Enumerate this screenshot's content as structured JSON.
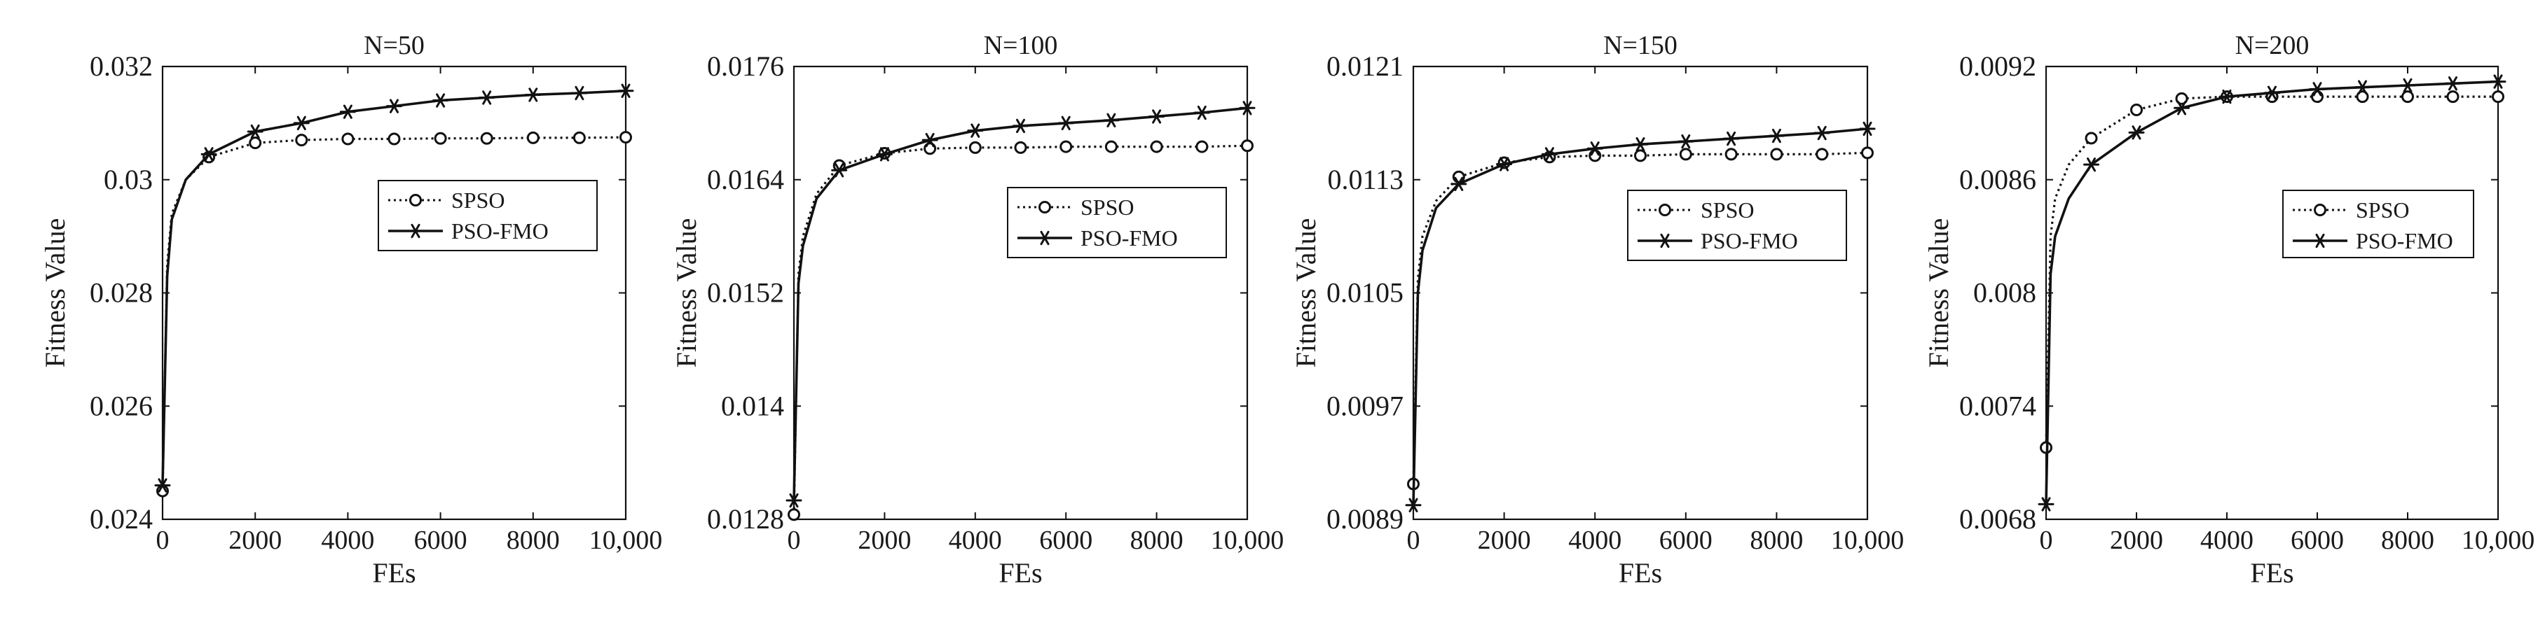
{
  "chart_data": [
    {
      "type": "line",
      "title": "N=50",
      "xlabel": "FEs",
      "ylabel": "Fitness Value",
      "xlim": [
        0,
        10000
      ],
      "ylim": [
        0.024,
        0.032
      ],
      "xticks": [
        0,
        2000,
        4000,
        6000,
        8000,
        10000
      ],
      "xtick_labels": [
        "0",
        "2000",
        "4000",
        "6000",
        "8000",
        "10,000"
      ],
      "yticks": [
        0.024,
        0.026,
        0.028,
        0.03,
        0.032
      ],
      "ytick_labels": [
        "0.024",
        "0.026",
        "0.028",
        "0.03",
        "0.032"
      ],
      "legend_position": "center-right",
      "series": [
        {
          "name": "SPSO",
          "style": "dotted",
          "marker": "circle",
          "x": [
            0,
            100,
            200,
            500,
            1000,
            2000,
            3000,
            4000,
            5000,
            6000,
            7000,
            8000,
            9000,
            10000
          ],
          "y": [
            0.0245,
            0.0285,
            0.0294,
            0.03,
            0.0304,
            0.03065,
            0.0307,
            0.03072,
            0.03072,
            0.03073,
            0.03073,
            0.03074,
            0.03074,
            0.03075
          ],
          "marker_x": [
            0,
            1000,
            2000,
            3000,
            4000,
            5000,
            6000,
            7000,
            8000,
            9000,
            10000
          ]
        },
        {
          "name": "PSO-FMO",
          "style": "solid",
          "marker": "asterisk",
          "x": [
            0,
            100,
            200,
            500,
            1000,
            2000,
            3000,
            4000,
            5000,
            6000,
            7000,
            8000,
            9000,
            10000
          ],
          "y": [
            0.0246,
            0.0283,
            0.0293,
            0.03,
            0.03045,
            0.03085,
            0.031,
            0.0312,
            0.0313,
            0.0314,
            0.03145,
            0.0315,
            0.03153,
            0.03157
          ],
          "marker_x": [
            0,
            1000,
            2000,
            3000,
            4000,
            5000,
            6000,
            7000,
            8000,
            9000,
            10000
          ]
        }
      ]
    },
    {
      "type": "line",
      "title": "N=100",
      "xlabel": "FEs",
      "ylabel": "Fitness Value",
      "xlim": [
        0,
        10000
      ],
      "ylim": [
        0.0128,
        0.0176
      ],
      "xticks": [
        0,
        2000,
        4000,
        6000,
        8000,
        10000
      ],
      "xtick_labels": [
        "0",
        "2000",
        "4000",
        "6000",
        "8000",
        "10,000"
      ],
      "yticks": [
        0.0128,
        0.014,
        0.0152,
        0.0164,
        0.0176
      ],
      "ytick_labels": [
        "0.0128",
        "0.014",
        "0.0152",
        "0.0164",
        "0.0176"
      ],
      "legend_position": "center-right",
      "series": [
        {
          "name": "SPSO",
          "style": "dotted",
          "marker": "circle",
          "x": [
            0,
            100,
            200,
            500,
            1000,
            2000,
            3000,
            4000,
            5000,
            6000,
            7000,
            8000,
            9000,
            10000
          ],
          "y": [
            0.01285,
            0.0154,
            0.0158,
            0.01625,
            0.01655,
            0.01668,
            0.01673,
            0.01674,
            0.01674,
            0.01675,
            0.01675,
            0.01675,
            0.01675,
            0.01676
          ],
          "marker_x": [
            0,
            1000,
            2000,
            3000,
            4000,
            5000,
            6000,
            7000,
            8000,
            9000,
            10000
          ]
        },
        {
          "name": "PSO-FMO",
          "style": "solid",
          "marker": "asterisk",
          "x": [
            0,
            100,
            200,
            500,
            1000,
            2000,
            3000,
            4000,
            5000,
            6000,
            7000,
            8000,
            9000,
            10000
          ],
          "y": [
            0.013,
            0.0153,
            0.0157,
            0.0162,
            0.0165,
            0.01667,
            0.01682,
            0.01692,
            0.01697,
            0.017,
            0.01703,
            0.01707,
            0.01711,
            0.01716
          ],
          "marker_x": [
            0,
            1000,
            2000,
            3000,
            4000,
            5000,
            6000,
            7000,
            8000,
            9000,
            10000
          ]
        }
      ]
    },
    {
      "type": "line",
      "title": "N=150",
      "xlabel": "FEs",
      "ylabel": "Fitness Value",
      "xlim": [
        0,
        10000
      ],
      "ylim": [
        0.0089,
        0.0121
      ],
      "xticks": [
        0,
        2000,
        4000,
        6000,
        8000,
        10000
      ],
      "xtick_labels": [
        "0",
        "2000",
        "4000",
        "6000",
        "8000",
        "10,000"
      ],
      "yticks": [
        0.0089,
        0.0097,
        0.0105,
        0.0113,
        0.0121
      ],
      "ytick_labels": [
        "0.0089",
        "0.0097",
        "0.0105",
        "0.0113",
        "0.0121"
      ],
      "legend_position": "center-right",
      "series": [
        {
          "name": "SPSO",
          "style": "dotted",
          "marker": "circle",
          "x": [
            0,
            100,
            200,
            500,
            1000,
            2000,
            3000,
            4000,
            5000,
            6000,
            7000,
            8000,
            9000,
            10000
          ],
          "y": [
            0.00915,
            0.0106,
            0.0109,
            0.01115,
            0.01132,
            0.01142,
            0.01146,
            0.01147,
            0.01147,
            0.01148,
            0.01148,
            0.01148,
            0.01148,
            0.01149
          ],
          "marker_x": [
            0,
            1000,
            2000,
            3000,
            4000,
            5000,
            6000,
            7000,
            8000,
            9000,
            10000
          ]
        },
        {
          "name": "PSO-FMO",
          "style": "solid",
          "marker": "asterisk",
          "x": [
            0,
            100,
            200,
            500,
            1000,
            2000,
            3000,
            4000,
            5000,
            6000,
            7000,
            8000,
            9000,
            10000
          ],
          "y": [
            0.009,
            0.0105,
            0.0108,
            0.0111,
            0.01127,
            0.01141,
            0.01148,
            0.01152,
            0.01155,
            0.01157,
            0.01159,
            0.01161,
            0.01163,
            0.01166
          ],
          "marker_x": [
            0,
            1000,
            2000,
            3000,
            4000,
            5000,
            6000,
            7000,
            8000,
            9000,
            10000
          ]
        }
      ]
    },
    {
      "type": "line",
      "title": "N=200",
      "xlabel": "FEs",
      "ylabel": "Fitness Value",
      "xlim": [
        0,
        10000
      ],
      "ylim": [
        0.0068,
        0.0092
      ],
      "xticks": [
        0,
        2000,
        4000,
        6000,
        8000,
        10000
      ],
      "xtick_labels": [
        "0",
        "2000",
        "4000",
        "6000",
        "8000",
        "10,000"
      ],
      "yticks": [
        0.0068,
        0.0074,
        0.008,
        0.0086,
        0.0092
      ],
      "ytick_labels": [
        "0.0068",
        "0.0074",
        "0.008",
        "0.0086",
        "0.0092"
      ],
      "legend_position": "center-right",
      "series": [
        {
          "name": "SPSO",
          "style": "dotted",
          "marker": "circle",
          "x": [
            0,
            100,
            200,
            500,
            1000,
            2000,
            3000,
            4000,
            5000,
            6000,
            7000,
            8000,
            9000,
            10000
          ],
          "y": [
            0.00718,
            0.0083,
            0.0085,
            0.00868,
            0.00882,
            0.00897,
            0.00903,
            0.00904,
            0.00904,
            0.00904,
            0.00904,
            0.00904,
            0.00904,
            0.00904
          ],
          "marker_x": [
            0,
            1000,
            2000,
            3000,
            4000,
            5000,
            6000,
            7000,
            8000,
            9000,
            10000
          ]
        },
        {
          "name": "PSO-FMO",
          "style": "solid",
          "marker": "asterisk",
          "x": [
            0,
            100,
            200,
            500,
            1000,
            2000,
            3000,
            4000,
            5000,
            6000,
            7000,
            8000,
            9000,
            10000
          ],
          "y": [
            0.00688,
            0.0081,
            0.0083,
            0.0085,
            0.00868,
            0.00885,
            0.00898,
            0.00904,
            0.00906,
            0.00908,
            0.00909,
            0.0091,
            0.00911,
            0.00912
          ],
          "marker_x": [
            0,
            1000,
            2000,
            3000,
            4000,
            5000,
            6000,
            7000,
            8000,
            9000,
            10000
          ]
        }
      ]
    }
  ]
}
